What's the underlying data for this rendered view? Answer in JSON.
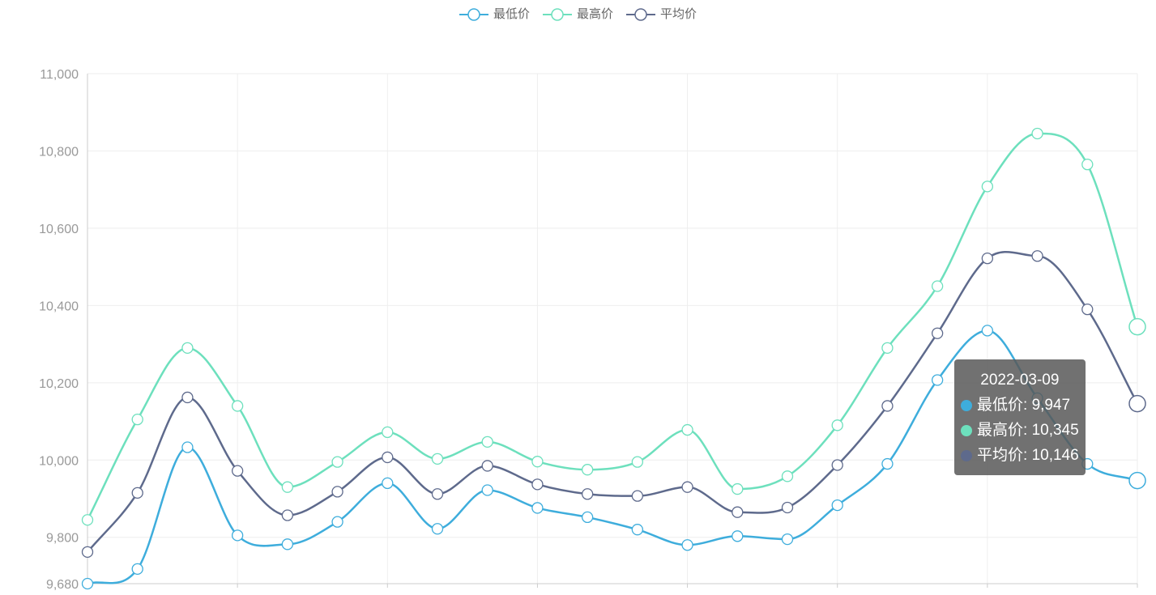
{
  "colors": {
    "min": "#3eaddc",
    "max": "#6de0bd",
    "avg": "#5e6a8c",
    "axis": "#cccccc",
    "grid": "#eeeeee",
    "label": "#999999"
  },
  "legend": [
    {
      "key": "min",
      "label": "最低价",
      "icon": "circle-line-icon"
    },
    {
      "key": "max",
      "label": "最高价",
      "icon": "circle-line-icon"
    },
    {
      "key": "avg",
      "label": "平均价",
      "icon": "circle-line-icon"
    }
  ],
  "tooltip": {
    "title": "2022-03-09",
    "rows": [
      {
        "key": "min",
        "label": "最低价",
        "value": "9,947"
      },
      {
        "key": "max",
        "label": "最高价",
        "value": "10,345"
      },
      {
        "key": "avg",
        "label": "平均价",
        "value": "10,146"
      }
    ]
  },
  "chart_data": {
    "type": "line",
    "smooth": true,
    "title": "",
    "xlabel": "",
    "ylabel": "",
    "ylim": [
      9680,
      11000
    ],
    "yticks": [
      {
        "value": 11000,
        "label": "11,000"
      },
      {
        "value": 10800,
        "label": "10,800"
      },
      {
        "value": 10600,
        "label": "10,600"
      },
      {
        "value": 10400,
        "label": "10,400"
      },
      {
        "value": 10200,
        "label": "10,200"
      },
      {
        "value": 10000,
        "label": "10,000"
      },
      {
        "value": 9800,
        "label": "9,800"
      },
      {
        "value": 9680,
        "label": "9,680"
      }
    ],
    "x_count": 22,
    "vertical_grid_every": 3,
    "grid": true,
    "legend_position": "top-center",
    "highlight_index": 21,
    "series": [
      {
        "key": "min",
        "name": "最低价",
        "values": [
          9680,
          9718,
          10033,
          9805,
          9782,
          9840,
          9940,
          9822,
          9922,
          9876,
          9852,
          9820,
          9780,
          9803,
          9795,
          9883,
          9990,
          10207,
          10335,
          10160,
          9990,
          9947
        ]
      },
      {
        "key": "max",
        "name": "最高价",
        "values": [
          9845,
          10105,
          10290,
          10140,
          9930,
          9995,
          10072,
          10003,
          10047,
          9996,
          9975,
          9995,
          10078,
          9925,
          9958,
          10090,
          10290,
          10450,
          10708,
          10845,
          10765,
          10345
        ]
      },
      {
        "key": "avg",
        "name": "平均价",
        "values": [
          9762,
          9915,
          10162,
          9972,
          9857,
          9918,
          10007,
          9912,
          9985,
          9937,
          9912,
          9907,
          9930,
          9865,
          9877,
          9987,
          10140,
          10328,
          10522,
          10528,
          10390,
          10146
        ]
      }
    ]
  }
}
